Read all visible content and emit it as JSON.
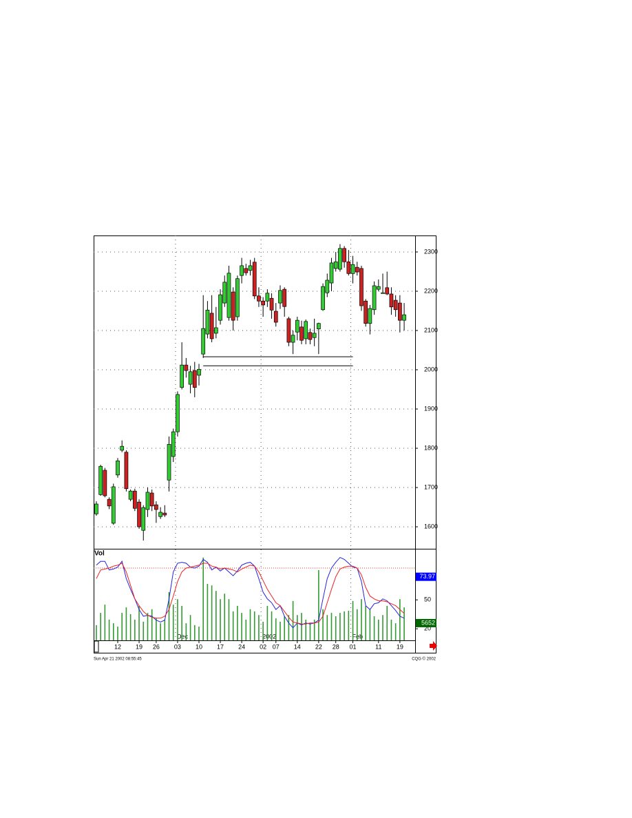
{
  "chart_data": [
    {
      "type": "candlestick",
      "categories": [
        null,
        null,
        null,
        null,
        null,
        "12",
        null,
        null,
        null,
        null,
        "19",
        null,
        null,
        null,
        "26",
        null,
        null,
        null,
        null,
        "03",
        null,
        null,
        null,
        null,
        "10",
        null,
        null,
        null,
        null,
        "17",
        null,
        null,
        null,
        null,
        "24",
        null,
        null,
        null,
        null,
        "02",
        null,
        null,
        "07",
        null,
        null,
        null,
        null,
        "14",
        null,
        null,
        null,
        null,
        "22",
        null,
        null,
        null,
        "28",
        null,
        null,
        null,
        "01",
        null,
        null,
        null,
        null,
        null,
        "11",
        null,
        null,
        null,
        null,
        "19",
        null
      ],
      "periods": [
        null,
        null,
        null,
        null,
        null,
        null,
        null,
        null,
        null,
        null,
        null,
        null,
        null,
        null,
        null,
        null,
        null,
        null,
        null,
        "Dec",
        null,
        null,
        null,
        null,
        null,
        null,
        null,
        null,
        null,
        null,
        null,
        null,
        null,
        null,
        null,
        null,
        null,
        null,
        null,
        "2002",
        null,
        null,
        null,
        null,
        null,
        null,
        null,
        null,
        null,
        null,
        null,
        null,
        null,
        null,
        null,
        null,
        null,
        null,
        null,
        null,
        "Feb",
        null,
        null,
        null,
        null,
        null,
        null,
        null,
        null,
        null,
        null,
        null,
        null
      ],
      "open": [
        1633,
        1682,
        1744,
        1670,
        1609,
        1732,
        1795,
        1790,
        1670,
        1691,
        1663,
        1591,
        1644,
        1686,
        1656,
        1626,
        1635,
        1719,
        1779,
        1842,
        1955,
        2012,
        1963,
        1998,
        1986,
        2040,
        2091,
        2144,
        2093,
        2126,
        2170,
        2133,
        2198,
        2135,
        2240,
        2258,
        2253,
        2274,
        2188,
        2175,
        2175,
        2182,
        2149,
        2170,
        2205,
        2130,
        2070,
        2096,
        2109,
        2079,
        2095,
        2082,
        2104,
        2153,
        2196,
        2221,
        2258,
        2256,
        2309,
        2275,
        2245,
        2261,
        2258,
        2175,
        2118,
        2153,
        2205,
        2195,
        2209,
        2193,
        2177,
        2170,
        2126
      ],
      "high": [
        1665,
        1758,
        1750,
        1675,
        1710,
        1775,
        1820,
        1795,
        1695,
        1697,
        1670,
        1655,
        1700,
        1695,
        1665,
        1650,
        1655,
        1830,
        1850,
        1945,
        2070,
        2030,
        2010,
        2020,
        2015,
        2190,
        2175,
        2190,
        2160,
        2205,
        2240,
        2265,
        2210,
        2240,
        2285,
        2270,
        2280,
        2285,
        2210,
        2185,
        2205,
        2195,
        2170,
        2215,
        2210,
        2135,
        2100,
        2135,
        2125,
        2128,
        2105,
        2130,
        2120,
        2220,
        2245,
        2285,
        2300,
        2320,
        2315,
        2305,
        2290,
        2275,
        2265,
        2180,
        2165,
        2225,
        2230,
        2245,
        2250,
        2210,
        2190,
        2190,
        2170
      ],
      "low": [
        1628,
        1679,
        1675,
        1645,
        1605,
        1725,
        1790,
        1690,
        1665,
        1640,
        1595,
        1565,
        1625,
        1640,
        1610,
        1620,
        1625,
        1690,
        1765,
        1830,
        1950,
        1980,
        1940,
        1930,
        1960,
        2030,
        2080,
        2070,
        2080,
        2115,
        2160,
        2125,
        2100,
        2125,
        2220,
        2240,
        2240,
        2180,
        2160,
        2135,
        2160,
        2130,
        2110,
        2155,
        2135,
        2060,
        2040,
        2075,
        2065,
        2065,
        2065,
        2060,
        2040,
        2150,
        2185,
        2200,
        2250,
        2250,
        2260,
        2240,
        2220,
        2240,
        2150,
        2110,
        2090,
        2140,
        2200,
        2195,
        2190,
        2140,
        2135,
        2095,
        2100
      ],
      "close": [
        1658,
        1754,
        1679,
        1653,
        1702,
        1768,
        1805,
        1697,
        1691,
        1647,
        1600,
        1649,
        1688,
        1653,
        1644,
        1637,
        1630,
        1810,
        1842,
        1937,
        2012,
        1998,
        1995,
        1955,
        2001,
        2105,
        2152,
        2079,
        2107,
        2191,
        2223,
        2246,
        2126,
        2232,
        2265,
        2247,
        2265,
        2188,
        2175,
        2165,
        2195,
        2152,
        2121,
        2202,
        2161,
        2070,
        2088,
        2126,
        2075,
        2123,
        2077,
        2093,
        2118,
        2212,
        2228,
        2272,
        2275,
        2309,
        2275,
        2245,
        2268,
        2249,
        2163,
        2118,
        2156,
        2214,
        2212,
        2196,
        2193,
        2160,
        2153,
        2126,
        2140
      ],
      "up_color": "#33cc33",
      "down_color": "#cc2222",
      "hlines": [
        2033,
        2010
      ],
      "ylim": [
        1544,
        2342
      ],
      "yticks": [
        1600,
        1700,
        1800,
        1900,
        2000,
        2100,
        2200,
        2300
      ],
      "grid": true
    },
    {
      "type": "indicator",
      "title": "Vol",
      "series": [
        {
          "kind": "bar",
          "axis": "y2",
          "color": "#339933",
          "values": [
            5000,
            9000,
            11700,
            6800,
            5600,
            4500,
            9000,
            10800,
            8600,
            6800,
            11300,
            6100,
            9000,
            10200,
            7200,
            5600,
            6800,
            15800,
            11700,
            13500,
            11300,
            5600,
            8300,
            5000,
            4500,
            27100,
            18500,
            18000,
            16200,
            13500,
            15300,
            13500,
            9500,
            11300,
            9000,
            6800,
            10200,
            9500,
            8300,
            6100,
            11300,
            9500,
            7200,
            6100,
            7900,
            8300,
            12900,
            8300,
            9000,
            6800,
            5600,
            6800,
            23000,
            10200,
            8300,
            9000,
            7900,
            9000,
            9500,
            9700,
            12900,
            10200,
            13500,
            11300,
            10200,
            7900,
            6800,
            8300,
            11300,
            6800,
            5600,
            13500,
            10800
          ]
        },
        {
          "kind": "line",
          "color": "#2222dd",
          "values": [
            86,
            90,
            90,
            81,
            82,
            84,
            90,
            72,
            61,
            51,
            40,
            33,
            34,
            33,
            29,
            27,
            29,
            51,
            79,
            88,
            89,
            88,
            84,
            83,
            85,
            92,
            89,
            81,
            84,
            80,
            83,
            79,
            75,
            80,
            86,
            88,
            89,
            85,
            72,
            58,
            51,
            47,
            40,
            44,
            33,
            26,
            21,
            26,
            24,
            26,
            25,
            26,
            29,
            51,
            72,
            83,
            89,
            94,
            92,
            88,
            84,
            83,
            69,
            44,
            40,
            46,
            47,
            51,
            49,
            44,
            39,
            33,
            31
          ]
        },
        {
          "kind": "line",
          "color": "#ee2222",
          "values": [
            72,
            81,
            82,
            83,
            85,
            86,
            88,
            79,
            65,
            51,
            44,
            38,
            34,
            32,
            31,
            31,
            33,
            40,
            54,
            69,
            79,
            83,
            84,
            85,
            86,
            88,
            88,
            85,
            84,
            82,
            83,
            82,
            81,
            79,
            82,
            84,
            86,
            85,
            79,
            70,
            61,
            54,
            47,
            44,
            38,
            32,
            27,
            26,
            25,
            25,
            26,
            26,
            27,
            33,
            47,
            61,
            74,
            82,
            84,
            85,
            85,
            83,
            76,
            63,
            54,
            51,
            49,
            49,
            48,
            46,
            44,
            40,
            36
          ]
        }
      ],
      "ref_level": 83,
      "value_markers": [
        {
          "value": 73.97,
          "color": "#0000ff"
        },
        {
          "value": 5652,
          "axis": "y2",
          "color": "#006600"
        }
      ],
      "ylim": [
        8,
        103
      ],
      "yticks": [
        20,
        50
      ],
      "y2lim": [
        0,
        30000
      ]
    }
  ],
  "footer": {
    "left": "Sun Apr 21 2002 08:55:45",
    "right": "CQG © 2002"
  }
}
